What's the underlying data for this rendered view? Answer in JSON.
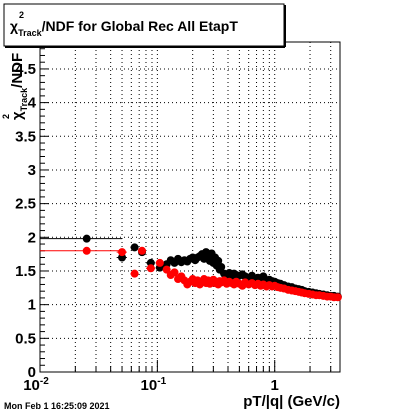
{
  "chart_data": {
    "type": "scatter",
    "title_parts": {
      "symbol": "χ",
      "sup": "2",
      "sub": "Track",
      "rest": "/NDF for Global Rec All EtapT"
    },
    "xlabel": "pT/|q| (GeV/c)",
    "ylabel_parts": {
      "symbol": "χ",
      "sup": "2",
      "sub": "Track",
      "rest": "/NDF"
    },
    "x_scale": "log",
    "xlim": [
      0.01,
      3.6
    ],
    "ylim": [
      0,
      4.9
    ],
    "grid": true,
    "x_ticks": [
      {
        "value": 0.01,
        "base": "10",
        "exp": "-2"
      },
      {
        "value": 0.1,
        "base": "10",
        "exp": "-1"
      },
      {
        "value": 1,
        "base": "1",
        "exp": ""
      }
    ],
    "y_ticks": [
      "0",
      "0.5",
      "1",
      "1.5",
      "2",
      "2.5",
      "3",
      "3.5",
      "4",
      "4.5"
    ],
    "y_tick_values": [
      0,
      0.5,
      1,
      1.5,
      2,
      2.5,
      3,
      3.5,
      4,
      4.5
    ],
    "series": [
      {
        "color": "#000000",
        "points": [
          {
            "x": 0.025,
            "y": 1.98,
            "xerr": [
              0.01,
              0.05
            ]
          },
          {
            "x": 0.05,
            "y": 1.7,
            "xerr": [
              0.045,
              0.055
            ]
          },
          {
            "x": 0.064,
            "y": 1.85,
            "xerr": [
              0.059,
              0.069
            ]
          },
          {
            "x": 0.074,
            "y": 1.78,
            "xerr": [
              0.069,
              0.079
            ]
          },
          {
            "x": 0.088,
            "y": 1.62,
            "xerr": [
              0.08,
              0.096
            ]
          },
          {
            "x": 0.105,
            "y": 1.55,
            "xerr": [
              0.097,
              0.113
            ]
          },
          {
            "x": 0.12,
            "y": 1.6
          },
          {
            "x": 0.13,
            "y": 1.66
          },
          {
            "x": 0.14,
            "y": 1.62
          },
          {
            "x": 0.15,
            "y": 1.68
          },
          {
            "x": 0.16,
            "y": 1.63
          },
          {
            "x": 0.17,
            "y": 1.66
          },
          {
            "x": 0.18,
            "y": 1.64
          },
          {
            "x": 0.19,
            "y": 1.68
          },
          {
            "x": 0.2,
            "y": 1.7
          },
          {
            "x": 0.21,
            "y": 1.66
          },
          {
            "x": 0.22,
            "y": 1.7
          },
          {
            "x": 0.23,
            "y": 1.72
          },
          {
            "x": 0.24,
            "y": 1.75
          },
          {
            "x": 0.25,
            "y": 1.68
          },
          {
            "x": 0.26,
            "y": 1.78
          },
          {
            "x": 0.27,
            "y": 1.72
          },
          {
            "x": 0.28,
            "y": 1.65
          },
          {
            "x": 0.29,
            "y": 1.76
          },
          {
            "x": 0.3,
            "y": 1.62
          },
          {
            "x": 0.31,
            "y": 1.7
          },
          {
            "x": 0.32,
            "y": 1.58
          },
          {
            "x": 0.33,
            "y": 1.65
          },
          {
            "x": 0.34,
            "y": 1.52
          },
          {
            "x": 0.35,
            "y": 1.56
          },
          {
            "x": 0.37,
            "y": 1.46
          },
          {
            "x": 0.39,
            "y": 1.44
          },
          {
            "x": 0.41,
            "y": 1.47
          },
          {
            "x": 0.43,
            "y": 1.42
          },
          {
            "x": 0.45,
            "y": 1.46
          },
          {
            "x": 0.47,
            "y": 1.44
          },
          {
            "x": 0.5,
            "y": 1.43
          },
          {
            "x": 0.53,
            "y": 1.45
          },
          {
            "x": 0.56,
            "y": 1.42
          },
          {
            "x": 0.6,
            "y": 1.4
          },
          {
            "x": 0.64,
            "y": 1.43
          },
          {
            "x": 0.68,
            "y": 1.38
          },
          {
            "x": 0.72,
            "y": 1.4
          },
          {
            "x": 0.76,
            "y": 1.38
          },
          {
            "x": 0.8,
            "y": 1.42
          },
          {
            "x": 0.85,
            "y": 1.36
          },
          {
            "x": 0.9,
            "y": 1.37
          },
          {
            "x": 0.95,
            "y": 1.35
          },
          {
            "x": 1.0,
            "y": 1.34
          },
          {
            "x": 1.06,
            "y": 1.32
          },
          {
            "x": 1.12,
            "y": 1.31
          },
          {
            "x": 1.2,
            "y": 1.29
          },
          {
            "x": 1.3,
            "y": 1.27
          },
          {
            "x": 1.4,
            "y": 1.26
          },
          {
            "x": 1.5,
            "y": 1.24
          },
          {
            "x": 1.6,
            "y": 1.23
          },
          {
            "x": 1.7,
            "y": 1.22
          },
          {
            "x": 1.8,
            "y": 1.2
          },
          {
            "x": 1.95,
            "y": 1.19
          },
          {
            "x": 2.1,
            "y": 1.18
          },
          {
            "x": 2.25,
            "y": 1.17
          },
          {
            "x": 2.4,
            "y": 1.16
          },
          {
            "x": 2.6,
            "y": 1.15
          },
          {
            "x": 2.8,
            "y": 1.14
          },
          {
            "x": 3.0,
            "y": 1.13
          },
          {
            "x": 3.2,
            "y": 1.13
          },
          {
            "x": 3.45,
            "y": 1.12
          }
        ]
      },
      {
        "color": "#ff0000",
        "points": [
          {
            "x": 0.025,
            "y": 1.8,
            "xerr": [
              0.01,
              0.05
            ]
          },
          {
            "x": 0.05,
            "y": 1.78,
            "xerr": [
              0.045,
              0.055
            ]
          },
          {
            "x": 0.064,
            "y": 1.46,
            "xerr": [
              0.059,
              0.069
            ]
          },
          {
            "x": 0.074,
            "y": 1.8,
            "xerr": [
              0.069,
              0.079
            ]
          },
          {
            "x": 0.088,
            "y": 1.54,
            "xerr": [
              0.08,
              0.096
            ]
          },
          {
            "x": 0.105,
            "y": 1.62,
            "xerr": [
              0.097,
              0.113
            ]
          },
          {
            "x": 0.12,
            "y": 1.52
          },
          {
            "x": 0.13,
            "y": 1.44
          },
          {
            "x": 0.14,
            "y": 1.48
          },
          {
            "x": 0.15,
            "y": 1.38
          },
          {
            "x": 0.16,
            "y": 1.42
          },
          {
            "x": 0.17,
            "y": 1.36
          },
          {
            "x": 0.18,
            "y": 1.3
          },
          {
            "x": 0.19,
            "y": 1.34
          },
          {
            "x": 0.2,
            "y": 1.38
          },
          {
            "x": 0.21,
            "y": 1.32
          },
          {
            "x": 0.22,
            "y": 1.36
          },
          {
            "x": 0.23,
            "y": 1.3
          },
          {
            "x": 0.24,
            "y": 1.34
          },
          {
            "x": 0.25,
            "y": 1.38
          },
          {
            "x": 0.26,
            "y": 1.32
          },
          {
            "x": 0.27,
            "y": 1.36
          },
          {
            "x": 0.28,
            "y": 1.31
          },
          {
            "x": 0.29,
            "y": 1.35
          },
          {
            "x": 0.3,
            "y": 1.37
          },
          {
            "x": 0.31,
            "y": 1.32
          },
          {
            "x": 0.32,
            "y": 1.34
          },
          {
            "x": 0.33,
            "y": 1.3
          },
          {
            "x": 0.34,
            "y": 1.35
          },
          {
            "x": 0.35,
            "y": 1.33
          },
          {
            "x": 0.37,
            "y": 1.36
          },
          {
            "x": 0.39,
            "y": 1.31
          },
          {
            "x": 0.41,
            "y": 1.34
          },
          {
            "x": 0.43,
            "y": 1.32
          },
          {
            "x": 0.45,
            "y": 1.3
          },
          {
            "x": 0.47,
            "y": 1.34
          },
          {
            "x": 0.5,
            "y": 1.31
          },
          {
            "x": 0.53,
            "y": 1.28
          },
          {
            "x": 0.56,
            "y": 1.33
          },
          {
            "x": 0.6,
            "y": 1.3
          },
          {
            "x": 0.64,
            "y": 1.32
          },
          {
            "x": 0.68,
            "y": 1.29
          },
          {
            "x": 0.72,
            "y": 1.31
          },
          {
            "x": 0.76,
            "y": 1.28
          },
          {
            "x": 0.8,
            "y": 1.3
          },
          {
            "x": 0.85,
            "y": 1.27
          },
          {
            "x": 0.9,
            "y": 1.29
          },
          {
            "x": 0.95,
            "y": 1.27
          },
          {
            "x": 1.0,
            "y": 1.28
          },
          {
            "x": 1.06,
            "y": 1.26
          },
          {
            "x": 1.12,
            "y": 1.25
          },
          {
            "x": 1.2,
            "y": 1.24
          },
          {
            "x": 1.3,
            "y": 1.22
          },
          {
            "x": 1.4,
            "y": 1.21
          },
          {
            "x": 1.5,
            "y": 1.2
          },
          {
            "x": 1.6,
            "y": 1.19
          },
          {
            "x": 1.7,
            "y": 1.18
          },
          {
            "x": 1.8,
            "y": 1.17
          },
          {
            "x": 1.95,
            "y": 1.16
          },
          {
            "x": 2.1,
            "y": 1.15
          },
          {
            "x": 2.25,
            "y": 1.14
          },
          {
            "x": 2.4,
            "y": 1.14
          },
          {
            "x": 2.6,
            "y": 1.13
          },
          {
            "x": 2.8,
            "y": 1.12
          },
          {
            "x": 3.0,
            "y": 1.12
          },
          {
            "x": 3.2,
            "y": 1.11
          },
          {
            "x": 3.45,
            "y": 1.11
          }
        ]
      }
    ]
  },
  "footer": {
    "timestamp": "Mon Feb  1 16:25:09 2021"
  }
}
